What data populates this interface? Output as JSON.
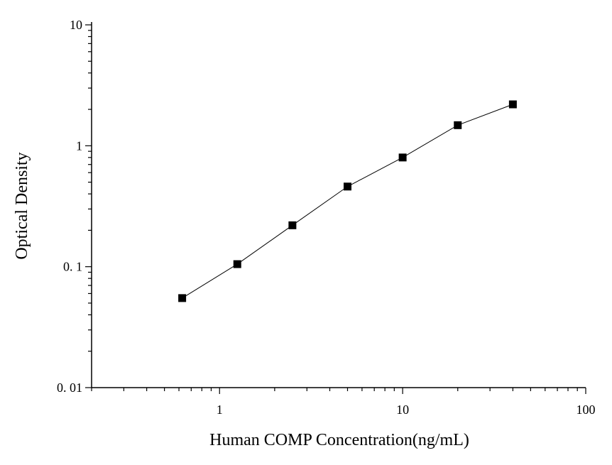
{
  "chart_data": {
    "type": "scatter",
    "title": "",
    "xlabel": "Human COMP Concentration(ng/mL)",
    "ylabel": "Optical Density",
    "x_scale": "log",
    "y_scale": "log",
    "xlim": [
      0.2,
      100
    ],
    "ylim": [
      0.01,
      10
    ],
    "x_tick_labels": [
      {
        "value": 1,
        "label": "1"
      },
      {
        "value": 10,
        "label": "10"
      },
      {
        "value": 100,
        "label": "100"
      }
    ],
    "y_tick_labels": [
      {
        "value": 0.01,
        "label": "0. 01"
      },
      {
        "value": 0.1,
        "label": "0. 1"
      },
      {
        "value": 1,
        "label": "1"
      },
      {
        "value": 10,
        "label": "10"
      }
    ],
    "grid": false,
    "legend": "none",
    "series": [
      {
        "marker": "square",
        "fitted_line": true,
        "color": "#000000",
        "points": [
          {
            "x": 0.625,
            "y": 0.055
          },
          {
            "x": 1.25,
            "y": 0.105
          },
          {
            "x": 2.5,
            "y": 0.22
          },
          {
            "x": 5,
            "y": 0.46
          },
          {
            "x": 10,
            "y": 0.8
          },
          {
            "x": 20,
            "y": 1.48
          },
          {
            "x": 40,
            "y": 2.2
          }
        ]
      }
    ]
  }
}
